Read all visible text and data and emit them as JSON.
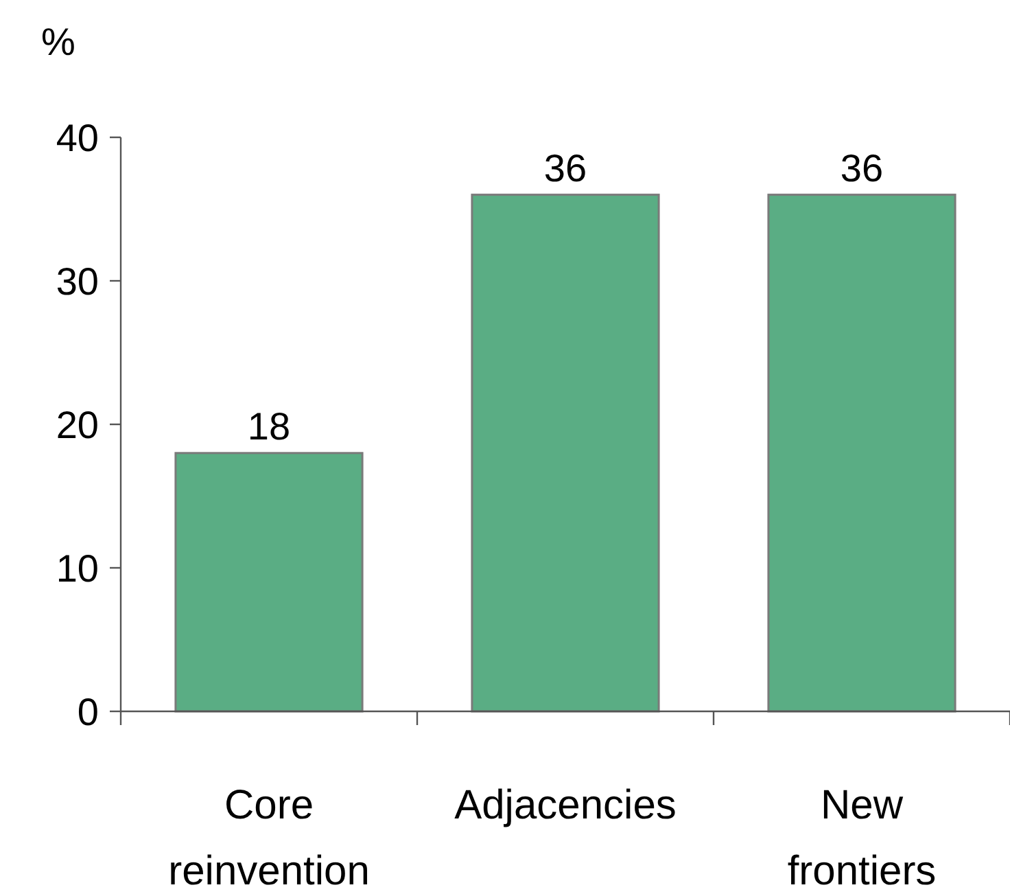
{
  "chart_data": {
    "type": "bar",
    "ylabel": "%",
    "categories": [
      "Core reinvention",
      "Adjacencies",
      "New frontiers"
    ],
    "values": [
      18,
      36,
      36
    ],
    "color": "#5aad84",
    "ylim": [
      0,
      40
    ],
    "yticks": [
      0,
      10,
      20,
      30,
      40
    ],
    "data_labels": true,
    "grid": false
  }
}
